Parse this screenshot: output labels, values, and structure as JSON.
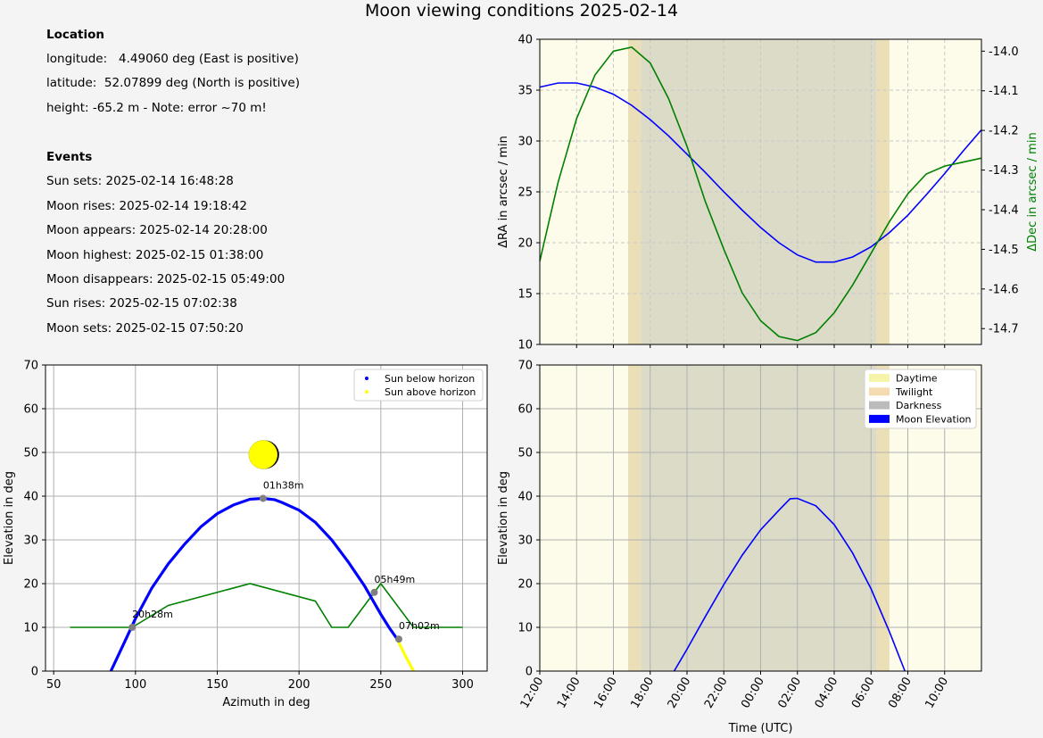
{
  "title": "Moon viewing conditions 2025-02-14",
  "location": {
    "heading": "Location",
    "lines": [
      "longitude:   4.49060 deg (East is positive)",
      "latitude:  52.07899 deg (North is positive)",
      "height: -65.2 m - Note: error ~70 m!"
    ]
  },
  "events": {
    "heading": "Events",
    "lines": [
      "Sun sets: 2025-02-14 16:48:28",
      "Moon rises: 2025-02-14 19:18:42",
      "Moon appears: 2025-02-14 20:28:00",
      "Moon highest: 2025-02-15 01:38:00",
      "Moon disappears: 2025-02-15 05:49:00",
      "Sun rises: 2025-02-15 07:02:38",
      "Moon sets: 2025-02-15 07:50:20"
    ]
  },
  "colors": {
    "moon_track": "#0000ff",
    "horizon": "#008000",
    "dec_rate": "#008000",
    "ra_rate": "#0000ff",
    "daytime": "#fdfbea",
    "twilight": "#ebdfb8",
    "darkness": "#dcdbc7",
    "sun_below": "#0000ff",
    "sun_above": "#ffff00",
    "event_marker": "#808080"
  },
  "chart_data": [
    {
      "type": "line",
      "title": "",
      "ylabel_left": "ΔRA in arcsec / min",
      "ylabel_right": "ΔDec in arcsec / min",
      "xlim_hours": [
        12,
        36
      ],
      "ylim_left": [
        10,
        40
      ],
      "ylim_right": [
        -14.74,
        -13.97
      ],
      "left_ticks": [
        "10",
        "15",
        "20",
        "25",
        "30",
        "35",
        "40"
      ],
      "right_ticks": [
        "-14.0",
        "-14.1",
        "-14.2",
        "-14.3",
        "-14.4",
        "-14.5",
        "-14.6",
        "-14.7"
      ],
      "grid": true,
      "series": [
        {
          "axis": "left",
          "name": "ΔRA",
          "x": [
            12,
            13,
            14,
            15,
            16,
            17,
            18,
            19,
            20,
            21,
            22,
            23,
            24,
            25,
            26,
            27,
            28,
            29,
            30,
            31,
            32,
            33,
            34,
            35,
            36
          ],
          "y": [
            35.3,
            35.7,
            35.7,
            35.3,
            34.6,
            33.5,
            32.1,
            30.5,
            28.7,
            26.9,
            25.0,
            23.2,
            21.5,
            20.0,
            18.8,
            18.1,
            18.1,
            18.6,
            19.6,
            21.0,
            22.7,
            24.7,
            26.8,
            29.0,
            31.1
          ]
        },
        {
          "axis": "right",
          "name": "ΔDec",
          "x": [
            12,
            13,
            14,
            15,
            16,
            17,
            18,
            19,
            20,
            21,
            22,
            23,
            24,
            25,
            26,
            27,
            28,
            29,
            30,
            31,
            32,
            33,
            34,
            35,
            36
          ],
          "y": [
            -14.53,
            -14.33,
            -14.17,
            -14.06,
            -14.0,
            -13.99,
            -14.03,
            -14.12,
            -14.24,
            -14.38,
            -14.5,
            -14.61,
            -14.68,
            -14.72,
            -14.73,
            -14.71,
            -14.66,
            -14.59,
            -14.51,
            -14.43,
            -14.36,
            -14.31,
            -14.29,
            -14.28,
            -14.27
          ]
        }
      ],
      "bands": [
        {
          "kind": "twilight",
          "from": 16.8,
          "to": 17.5
        },
        {
          "kind": "darkness",
          "from": 17.5,
          "to": 30.3
        },
        {
          "kind": "twilight",
          "from": 30.3,
          "to": 31.0
        }
      ]
    },
    {
      "type": "scatter",
      "xlabel": "Azimuth in deg",
      "ylabel": "Elevation in deg",
      "xlim": [
        45,
        315
      ],
      "ylim": [
        0,
        70
      ],
      "xticks": [
        "50",
        "100",
        "150",
        "200",
        "250",
        "300"
      ],
      "yticks": [
        "0",
        "10",
        "20",
        "30",
        "40",
        "50",
        "60",
        "70"
      ],
      "grid": true,
      "legend_position": "top-right",
      "legend": [
        "Sun below horizon",
        "Sun above horizon"
      ],
      "moon_track": {
        "x": [
          85,
          90,
          95,
          100,
          110,
          120,
          130,
          140,
          150,
          160,
          170,
          178,
          185,
          190,
          200,
          210,
          220,
          230,
          240,
          250,
          255,
          260,
          265,
          270
        ],
        "y": [
          0,
          4,
          8,
          12,
          19,
          24.5,
          29,
          33,
          36,
          38,
          39.3,
          39.5,
          39.2,
          38.5,
          36.8,
          34,
          30,
          25,
          19.5,
          13,
          10,
          7.3,
          3.5,
          0
        ],
        "sun_above_from_x": 260
      },
      "horizon": {
        "x": [
          60,
          98,
          120,
          170,
          210,
          220,
          230,
          250,
          270,
          300
        ],
        "y": [
          10,
          10,
          15,
          20,
          16,
          10,
          10,
          20,
          10,
          10
        ]
      },
      "moon_symbol": {
        "x": 178,
        "y": 49.5
      },
      "events": [
        {
          "label": "20h28m",
          "x": 98,
          "y": 10
        },
        {
          "label": "01h38m",
          "x": 178,
          "y": 39.5
        },
        {
          "label": "05h49m",
          "x": 246,
          "y": 18
        },
        {
          "label": "07h02m",
          "x": 261,
          "y": 7.3
        }
      ]
    },
    {
      "type": "line",
      "xlabel": "Time (UTC)",
      "ylabel": "Elevation in deg",
      "xlim_hours": [
        12,
        36
      ],
      "ylim": [
        0,
        70
      ],
      "xtick_labels": [
        "12:00",
        "14:00",
        "16:00",
        "18:00",
        "20:00",
        "22:00",
        "00:00",
        "02:00",
        "04:00",
        "06:00",
        "08:00",
        "10:00"
      ],
      "yticks": [
        "0",
        "10",
        "20",
        "30",
        "40",
        "50",
        "60",
        "70"
      ],
      "grid": true,
      "legend_position": "top-right",
      "legend": [
        "Daytime",
        "Twilight",
        "Darkness",
        "Moon Elevation"
      ],
      "series": [
        {
          "name": "Moon Elevation",
          "x": [
            19.3,
            20,
            21,
            22,
            23,
            24,
            25,
            25.6,
            26,
            27,
            28,
            29,
            30,
            31,
            31.84
          ],
          "y": [
            0,
            5,
            12.5,
            19.8,
            26.5,
            32.3,
            36.8,
            39.4,
            39.5,
            37.8,
            33.5,
            27,
            18.8,
            9,
            0
          ]
        }
      ],
      "bands": [
        {
          "kind": "twilight",
          "from": 16.8,
          "to": 17.5
        },
        {
          "kind": "darkness",
          "from": 17.5,
          "to": 30.3
        },
        {
          "kind": "twilight",
          "from": 30.3,
          "to": 31.0
        }
      ]
    }
  ]
}
